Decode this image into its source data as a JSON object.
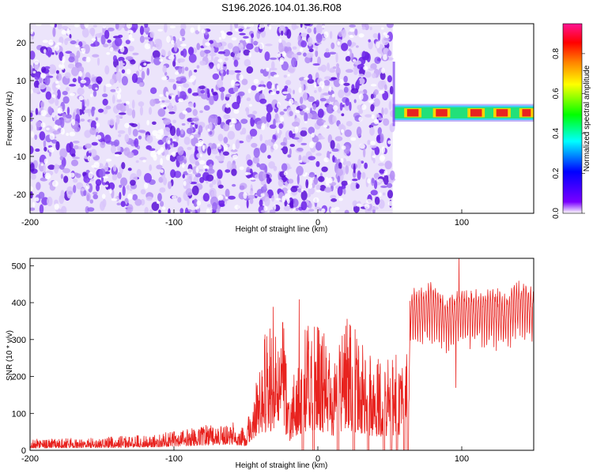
{
  "title": "S196.2026.104.01.36.R08",
  "chart_data": [
    {
      "type": "heatmap",
      "title": "S196.2026.104.01.36.R08",
      "xlabel": "Height of straight line (km)",
      "ylabel": "Frequency (Hz)",
      "xlim": [
        -200,
        150
      ],
      "ylim": [
        -25,
        25
      ],
      "xticks": [
        -200,
        -100,
        0,
        100
      ],
      "xtick_labels": [
        "-200",
        "-100",
        "0",
        "100"
      ],
      "yticks": [
        -20,
        -10,
        0,
        10,
        20
      ],
      "ytick_labels": [
        "-20",
        "-10",
        "0",
        "10",
        "20"
      ],
      "noise_region_km": [
        -200,
        52
      ],
      "signal_band": {
        "x_start_km": 53,
        "x_end_km": 150,
        "freq_hz": [
          0,
          3
        ]
      },
      "colorbar": {
        "label": "Normalized spectral amplitude",
        "range": [
          0,
          0.95
        ],
        "ticks": [
          0.0,
          0.2,
          0.4,
          0.6,
          0.8
        ],
        "tick_labels": [
          "0.0",
          "0.2",
          "0.4",
          "0.6",
          "0.8"
        ],
        "colors": [
          "#ffffff",
          "#7a00ff",
          "#0000ff",
          "#00ffff",
          "#00ff00",
          "#ffff00",
          "#ff7f00",
          "#ff0000",
          "#ff1493"
        ]
      }
    },
    {
      "type": "line",
      "xlabel": "Height of straight line (km)",
      "ylabel": "SNR (10 * v/v)",
      "xlim": [
        -200,
        150
      ],
      "ylim": [
        0,
        520
      ],
      "xticks": [
        -200,
        -100,
        0,
        100
      ],
      "xtick_labels": [
        "-200",
        "-100",
        "0",
        "100"
      ],
      "yticks": [
        0,
        100,
        200,
        300,
        400,
        500
      ],
      "ytick_labels": [
        "0",
        "100",
        "200",
        "300",
        "400",
        "500"
      ],
      "series_color": "#e8231f",
      "envelope": {
        "x": [
          -200,
          -150,
          -110,
          -90,
          -75,
          -60,
          -50,
          -45,
          -40,
          -35,
          -30,
          -25,
          -20,
          -10,
          0,
          10,
          20,
          30,
          40,
          50,
          55,
          60,
          64,
          70,
          80,
          90,
          100,
          110,
          120,
          130,
          140,
          150
        ],
        "y": [
          30,
          35,
          45,
          60,
          70,
          80,
          60,
          150,
          230,
          360,
          300,
          400,
          150,
          320,
          380,
          240,
          370,
          300,
          250,
          250,
          260,
          230,
          430,
          420,
          440,
          400,
          430,
          420,
          430,
          410,
          450,
          420
        ]
      },
      "dropouts_km": [
        -10.5,
        -3,
        14,
        25,
        35,
        46,
        51,
        55,
        58,
        60,
        62.5
      ],
      "notable_points": [
        {
          "x": 98,
          "y": 520
        },
        {
          "x": 96,
          "y": 170
        },
        {
          "x": -31,
          "y": 388
        },
        {
          "x": -13,
          "y": 408
        }
      ]
    }
  ]
}
